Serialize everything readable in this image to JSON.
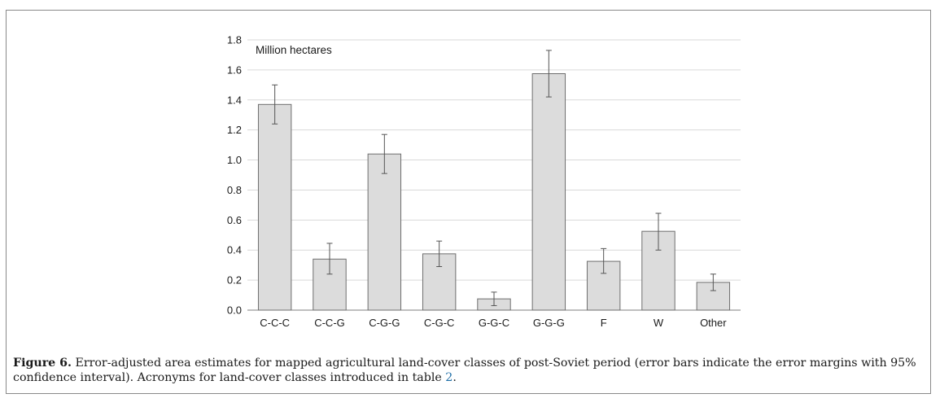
{
  "chart_data": {
    "type": "bar",
    "unit_label": "Million hectares",
    "categories": [
      "C-C-C",
      "C-C-G",
      "C-G-G",
      "C-G-C",
      "G-G-C",
      "G-G-G",
      "F",
      "W",
      "Other"
    ],
    "values": [
      1.37,
      0.34,
      1.04,
      0.375,
      0.075,
      1.575,
      0.325,
      0.525,
      0.185
    ],
    "error_low": [
      1.24,
      0.24,
      0.91,
      0.29,
      0.03,
      1.42,
      0.245,
      0.4,
      0.13
    ],
    "error_high": [
      1.5,
      0.445,
      1.17,
      0.46,
      0.12,
      1.73,
      0.41,
      0.645,
      0.24
    ],
    "yticks": [
      "0.0",
      "0.2",
      "0.4",
      "0.6",
      "0.8",
      "1.0",
      "1.2",
      "1.4",
      "1.6",
      "1.8"
    ],
    "ylim": [
      0,
      1.8
    ],
    "grid": true,
    "colors": {
      "bar_fill": "#dcdcdc",
      "bar_stroke": "#6e6e6e",
      "grid": "#d9d9d9",
      "axis": "#7f7f7f",
      "error": "#555555"
    }
  },
  "caption": {
    "label": "Figure 6.",
    "text": " Error-adjusted area estimates for mapped agricultural land-cover classes of post-Soviet period (error bars indicate the error margins with 95% confidence interval). Acronyms for land-cover classes introduced in table ",
    "table_ref": "2",
    "end": "."
  }
}
